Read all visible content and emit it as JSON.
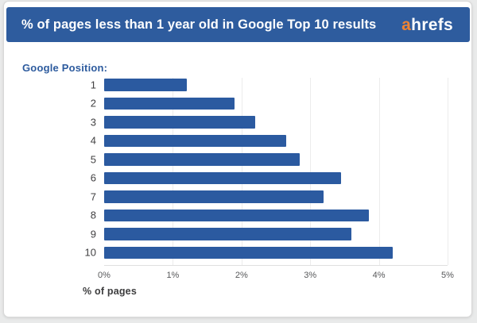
{
  "header": {
    "title": "% of pages less than 1 year old in Google Top 10 results",
    "logo": {
      "prefix": "a",
      "rest": "hrefs"
    }
  },
  "chart": {
    "group_label": "Google Position:",
    "x_axis_label": "% of pages"
  },
  "chart_data": {
    "type": "bar",
    "orientation": "horizontal",
    "title": "% of pages less than 1 year old in Google Top 10 results",
    "categories": [
      "1",
      "2",
      "3",
      "4",
      "5",
      "6",
      "7",
      "8",
      "9",
      "10"
    ],
    "values": [
      1.2,
      1.9,
      2.2,
      2.65,
      2.85,
      3.45,
      3.2,
      3.85,
      3.6,
      4.2
    ],
    "xlabel": "% of pages",
    "ylabel": "Google Position",
    "xlim": [
      0,
      5
    ],
    "xticks": [
      "0%",
      "1%",
      "2%",
      "3%",
      "4%",
      "5%"
    ],
    "grid": true,
    "legend": false
  },
  "colors": {
    "page_bg": "#e9eaea",
    "header_bg": "#2e5c9e",
    "bar": "#2b5aa0",
    "accent_orange": "#ef8332",
    "label_blue": "#2d5b9e",
    "axis_text": "#57585a"
  }
}
